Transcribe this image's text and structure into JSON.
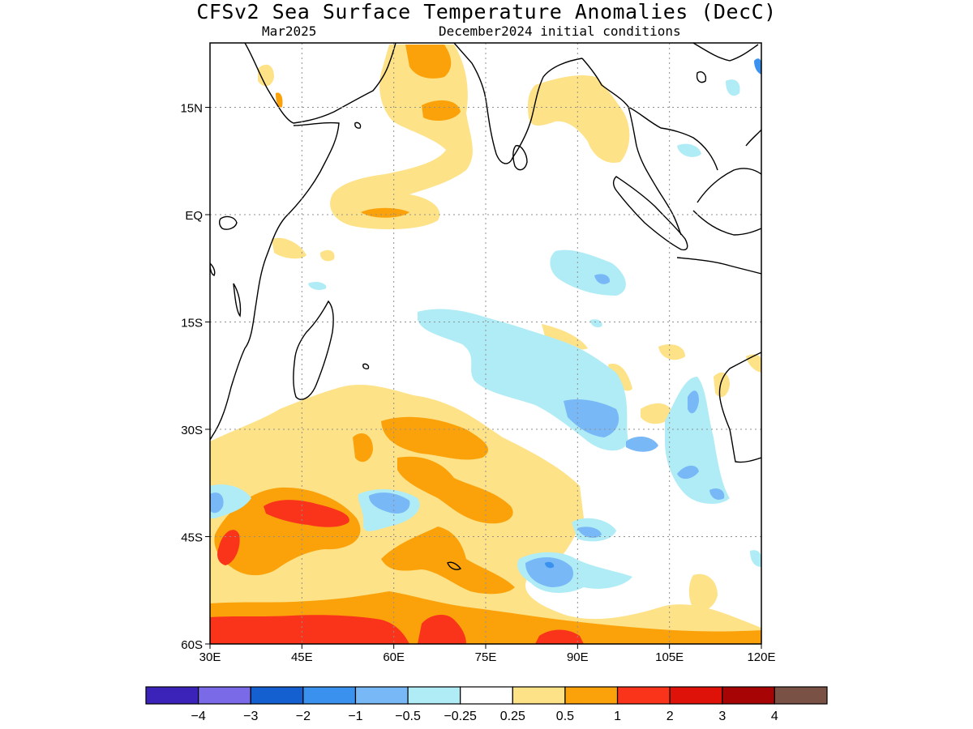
{
  "title": "CFSv2 Sea Surface Temperature Anomalies (DecC)",
  "subtitle_left": "Mar2025",
  "subtitle_right": "December2024 initial conditions",
  "map": {
    "lon_range": [
      30,
      120
    ],
    "lat_range": [
      -60,
      24
    ],
    "lat_ticks": [
      {
        "value": 15,
        "label": "15N"
      },
      {
        "value": 0,
        "label": "EQ"
      },
      {
        "value": -15,
        "label": "15S"
      },
      {
        "value": -30,
        "label": "30S"
      },
      {
        "value": -45,
        "label": "45S"
      },
      {
        "value": -60,
        "label": "60S"
      }
    ],
    "lon_ticks": [
      {
        "value": 30,
        "label": "30E"
      },
      {
        "value": 45,
        "label": "45E"
      },
      {
        "value": 60,
        "label": "60E"
      },
      {
        "value": 75,
        "label": "75E"
      },
      {
        "value": 90,
        "label": "90E"
      },
      {
        "value": 105,
        "label": "105E"
      },
      {
        "value": 120,
        "label": "120E"
      }
    ],
    "gridlines": "dotted"
  },
  "colorbar": {
    "colors": [
      "#3b22b8",
      "#7b6ae8",
      "#1560d0",
      "#3a92ee",
      "#78b8f7",
      "#b0ecf6",
      "#ffffff",
      "#fde287",
      "#fba20b",
      "#f9341b",
      "#de1208",
      "#a70505",
      "#795245"
    ],
    "labels": [
      "−4",
      "−3",
      "−2",
      "−1",
      "−0.5",
      "−0.25",
      "0.25",
      "0.5",
      "1",
      "2",
      "3",
      "4"
    ]
  },
  "colors": {
    "light_yellow": "#fde287",
    "orange": "#fba20b",
    "red_orange": "#f9341b",
    "pale_cyan": "#b0ecf6",
    "light_blue": "#78b8f7",
    "blue": "#3a92ee"
  }
}
